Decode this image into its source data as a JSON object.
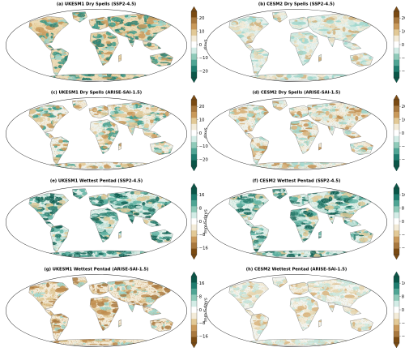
{
  "figure": {
    "panels": [
      {
        "title": "(a) UKESM1 Dry Spells (SSP2-4.5)",
        "colorbar": "dry",
        "land": "#ecdcb8",
        "stipple": "#d8b27a",
        "accents": [
          "#9ed6cc",
          "#3b9a8a",
          "#c9995a",
          "#e9d3a4",
          "#2b7f70"
        ]
      },
      {
        "title": "(b) CESM2 Dry Spells (SSP2-4.5)",
        "colorbar": "dry",
        "land": "#e8f1ec",
        "stipple": "#b9dcd2",
        "accents": [
          "#cfe9e1",
          "#eadbb7",
          "#9ed6cc",
          "#f3ebd8",
          "#d2b07a"
        ]
      },
      {
        "title": "(c) UKESM1 Dry Spells (ARISE-SAI-1.5)",
        "colorbar": "dry",
        "land": "#eef1ea",
        "stipple": "#d9bf8c",
        "accents": [
          "#9ed6cc",
          "#e2c996",
          "#3b9a8a",
          "#f3ebd8",
          "#c9995a"
        ]
      },
      {
        "title": "(d) CESM2 Dry Spells (ARISE-SAI-1.5)",
        "colorbar": "dry",
        "land": "#eef1ea",
        "stipple": "#d6bb8a",
        "accents": [
          "#cfe9e1",
          "#d8b27a",
          "#9ed6cc",
          "#f3ebd8",
          "#bf8d4f"
        ]
      },
      {
        "title": "(e) UKESM1 Wettest Pentad (SSP2-4.5)",
        "colorbar": "wet",
        "land": "#e3f0ea",
        "stipple": "#8fcab9",
        "accents": [
          "#2b7f70",
          "#5fb3a3",
          "#0f5f52",
          "#cfe9e1",
          "#e2c996"
        ]
      },
      {
        "title": "(f) CESM2 Wettest Pentad (SSP2-4.5)",
        "colorbar": "wet",
        "land": "#e3f0ea",
        "stipple": "#8fcab9",
        "accents": [
          "#2b7f70",
          "#5fb3a3",
          "#0f5f52",
          "#cfe9e1",
          "#e2c996"
        ]
      },
      {
        "title": "(g) UKESM1 Wettest Pentad (ARISE-SAI-1.5)",
        "colorbar": "wet",
        "land": "#f2ead6",
        "stipple": "#c9995a",
        "accents": [
          "#e2c996",
          "#bf8d4f",
          "#9ed6cc",
          "#f3ebd8",
          "#a8783e"
        ]
      },
      {
        "title": "(h) CESM2 Wettest Pentad (ARISE-SAI-1.5)",
        "colorbar": "wet",
        "land": "#f2f4ef",
        "stipple": "#dcc9a0",
        "accents": [
          "#e6d6b0",
          "#cfe9e1",
          "#f3ebd8",
          "#d8b27a",
          "#bfe3da"
        ]
      }
    ],
    "colorbars": {
      "dry": {
        "unit": "days",
        "ticks": [
          "20",
          "10",
          "0",
          "−10",
          "−20"
        ],
        "range": [
          -25,
          25
        ],
        "colors": [
          "#7a4a12",
          "#a8783e",
          "#c9995a",
          "#e2c996",
          "#f3ebd8",
          "#ffffff",
          "#d3ece6",
          "#8fcab9",
          "#4fa594",
          "#1f7d6f",
          "#0a5648"
        ]
      },
      "wet": {
        "unit": "mm/5days",
        "ticks": [
          "16",
          "8",
          "0",
          "−8",
          "−16"
        ],
        "range": [
          -20,
          20
        ],
        "colors": [
          "#0a5648",
          "#1f7d6f",
          "#4fa594",
          "#8fcab9",
          "#d3ece6",
          "#ffffff",
          "#f3ebd8",
          "#e2c996",
          "#c9995a",
          "#a8783e",
          "#7a4a12"
        ]
      }
    }
  }
}
